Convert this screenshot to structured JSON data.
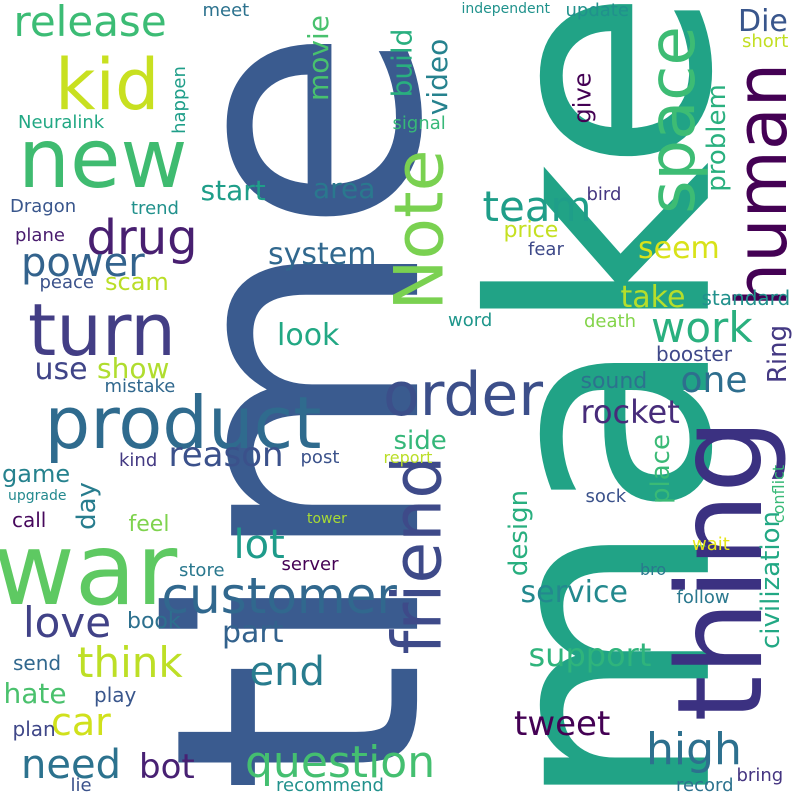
{
  "words": [
    {
      "text": "make",
      "color": "#21a386"
    },
    {
      "text": "time",
      "color": "#3a5b8f"
    },
    {
      "text": "thing",
      "color": "#3b3181"
    },
    {
      "text": "war",
      "color": "#5ec962"
    },
    {
      "text": "new",
      "color": "#3fbb70"
    },
    {
      "text": "product",
      "color": "#2f6b8e"
    },
    {
      "text": "friend",
      "color": "#3e4a89"
    },
    {
      "text": "turn",
      "color": "#433e85"
    },
    {
      "text": "Note",
      "color": "#7ad151"
    },
    {
      "text": "human",
      "color": "#440154"
    },
    {
      "text": "space",
      "color": "#3dbc74"
    },
    {
      "text": "order",
      "color": "#3c4f8a"
    },
    {
      "text": "kid",
      "color": "#c8e020"
    },
    {
      "text": "customer",
      "color": "#31688e"
    },
    {
      "text": "question",
      "color": "#44bf70"
    },
    {
      "text": "high",
      "color": "#2d708e"
    },
    {
      "text": "drug",
      "color": "#481f70"
    },
    {
      "text": "release",
      "color": "#3cbc75"
    },
    {
      "text": "team",
      "color": "#1f9e89"
    },
    {
      "text": "work",
      "color": "#2ab07f"
    },
    {
      "text": "think",
      "color": "#bddf26"
    },
    {
      "text": "end",
      "color": "#287c8e"
    },
    {
      "text": "lot",
      "color": "#1e9b8a"
    },
    {
      "text": "love",
      "color": "#414287"
    },
    {
      "text": "power",
      "color": "#33638d"
    },
    {
      "text": "reason",
      "color": "#3b518b"
    },
    {
      "text": "rocket",
      "color": "#472c7a"
    },
    {
      "text": "one",
      "color": "#2e6e8e"
    },
    {
      "text": "need",
      "color": "#2c728e"
    },
    {
      "text": "car",
      "color": "#d0e11c"
    },
    {
      "text": "tweet",
      "color": "#440154"
    },
    {
      "text": "bot",
      "color": "#482173"
    },
    {
      "text": "support",
      "color": "#2fb47c"
    },
    {
      "text": "service",
      "color": "#23898e"
    },
    {
      "text": "system",
      "color": "#31688e"
    },
    {
      "text": "look",
      "color": "#22a884"
    },
    {
      "text": "part",
      "color": "#33628d"
    },
    {
      "text": "movie",
      "color": "#48c16e"
    },
    {
      "text": "video",
      "color": "#26828e"
    },
    {
      "text": "build",
      "color": "#29af7f"
    },
    {
      "text": "start",
      "color": "#1f9e89"
    },
    {
      "text": "area",
      "color": "#2a788e"
    },
    {
      "text": "take",
      "color": "#b5de2b"
    },
    {
      "text": "seem",
      "color": "#d8e219"
    },
    {
      "text": "problem",
      "color": "#2ab07f"
    },
    {
      "text": "give",
      "color": "#440154"
    },
    {
      "text": "Die",
      "color": "#39568c"
    },
    {
      "text": "Ring",
      "color": "#443983"
    },
    {
      "text": "civilization",
      "color": "#22a884"
    },
    {
      "text": "place",
      "color": "#3aba76"
    },
    {
      "text": "design",
      "color": "#29af7f"
    },
    {
      "text": "day",
      "color": "#287d8e"
    },
    {
      "text": "side",
      "color": "#35b779"
    },
    {
      "text": "use",
      "color": "#404588"
    },
    {
      "text": "show",
      "color": "#b0dd2f"
    },
    {
      "text": "hate",
      "color": "#4ac16d"
    },
    {
      "text": "game",
      "color": "#26828e"
    },
    {
      "text": "scam",
      "color": "#bade28"
    },
    {
      "text": "price",
      "color": "#c5e021"
    },
    {
      "text": "booster",
      "color": "#3f4889"
    },
    {
      "text": "sound",
      "color": "#2c728e"
    },
    {
      "text": "standard",
      "color": "#21918c"
    },
    {
      "text": "feel",
      "color": "#7fd34e"
    },
    {
      "text": "book",
      "color": "#2d708e"
    },
    {
      "text": "play",
      "color": "#39568c"
    },
    {
      "text": "send",
      "color": "#31688e"
    },
    {
      "text": "plan",
      "color": "#3f4788"
    },
    {
      "text": "call",
      "color": "#46085c"
    },
    {
      "text": "kind",
      "color": "#443a83"
    },
    {
      "text": "post",
      "color": "#3b528b"
    },
    {
      "text": "store",
      "color": "#2a788e"
    },
    {
      "text": "server",
      "color": "#440154"
    },
    {
      "text": "mistake",
      "color": "#31688e"
    },
    {
      "text": "peace",
      "color": "#3b528b"
    },
    {
      "text": "plane",
      "color": "#481b6d"
    },
    {
      "text": "trend",
      "color": "#21918c"
    },
    {
      "text": "Dragon",
      "color": "#39568c"
    },
    {
      "text": "Neuralink",
      "color": "#22a884"
    },
    {
      "text": "happen",
      "color": "#1f9e89"
    },
    {
      "text": "meet",
      "color": "#2c728e"
    },
    {
      "text": "signal",
      "color": "#37b878"
    },
    {
      "text": "independent",
      "color": "#20928c"
    },
    {
      "text": "update",
      "color": "#21918c"
    },
    {
      "text": "short",
      "color": "#c2df23"
    },
    {
      "text": "bird",
      "color": "#453781"
    },
    {
      "text": "fear",
      "color": "#3e4989"
    },
    {
      "text": "word",
      "color": "#1f968b"
    },
    {
      "text": "death",
      "color": "#84d44b"
    },
    {
      "text": "report",
      "color": "#bade28"
    },
    {
      "text": "sock",
      "color": "#3b528b"
    },
    {
      "text": "conflict",
      "color": "#38b977"
    },
    {
      "text": "wait",
      "color": "#e5e419"
    },
    {
      "text": "bro",
      "color": "#2a788e"
    },
    {
      "text": "follow",
      "color": "#2a788e"
    },
    {
      "text": "upgrade",
      "color": "#23898e"
    },
    {
      "text": "tower",
      "color": "#a8db34"
    },
    {
      "text": "lie",
      "color": "#3b528b"
    },
    {
      "text": "recommend",
      "color": "#21918c"
    },
    {
      "text": "record",
      "color": "#2c728e"
    },
    {
      "text": "bring",
      "color": "#453581"
    }
  ]
}
